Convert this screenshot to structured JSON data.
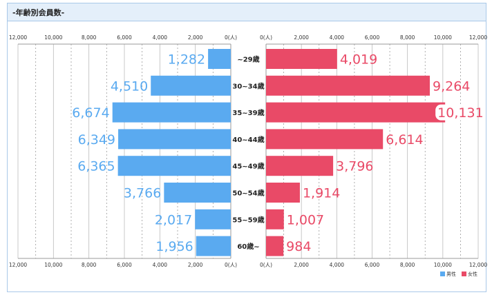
{
  "header": {
    "title": "-年齢別会員数-"
  },
  "chart_data": {
    "type": "bar",
    "orientation": "horizontal-pyramid",
    "categories": [
      "~29歳",
      "30~34歳",
      "35~39歳",
      "40~44歳",
      "45~49歳",
      "50~54歳",
      "55~59歳",
      "60歳~"
    ],
    "series": [
      {
        "name": "男性",
        "side": "left",
        "color": "#5aaaf0",
        "values": [
          1282,
          4510,
          6674,
          6349,
          6365,
          3766,
          2017,
          1956
        ]
      },
      {
        "name": "女性",
        "side": "right",
        "color": "#e94a67",
        "values": [
          4019,
          9264,
          10131,
          6614,
          3796,
          1914,
          1007,
          984
        ]
      }
    ],
    "value_labels": {
      "男性": [
        "1,282",
        "4,510",
        "6,674",
        "6,349",
        "6,365",
        "3,766",
        "2,017",
        "1,956"
      ],
      "女性": [
        "4,019",
        "9,264",
        "10,131",
        "6,614",
        "3,796",
        "1,914",
        "1,007",
        "984"
      ]
    },
    "xlim": [
      0,
      12000
    ],
    "ticks": [
      12000,
      10000,
      8000,
      6000,
      4000,
      2000,
      0
    ],
    "left_tick_labels": [
      "12,000",
      "10,000",
      "8,000",
      "6,000",
      "4,000",
      "2,000",
      "0(人)"
    ],
    "right_tick_labels": [
      "0(人)",
      "2,000",
      "4,000",
      "6,000",
      "8,000",
      "10,000",
      "12,000"
    ],
    "grid": true,
    "legend": {
      "position": "bottom-right",
      "items": [
        "男性",
        "女性"
      ]
    }
  }
}
